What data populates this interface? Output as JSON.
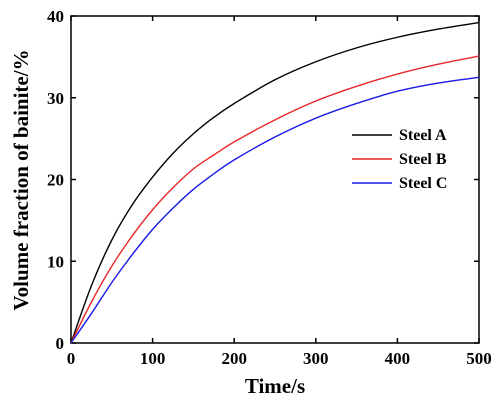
{
  "chart_data": {
    "type": "line",
    "title": "",
    "xlabel": "Time/s",
    "ylabel": "Volume fraction of bainite/%",
    "xlim": [
      0,
      500
    ],
    "ylim": [
      0,
      40
    ],
    "xticks": [
      0,
      100,
      200,
      300,
      400,
      500
    ],
    "yticks": [
      0,
      10,
      20,
      30,
      40
    ],
    "grid": false,
    "legend_position": "right",
    "x": [
      0,
      25,
      50,
      75,
      100,
      125,
      150,
      175,
      200,
      250,
      300,
      350,
      400,
      450,
      500
    ],
    "series": [
      {
        "name": "Steel A",
        "color": "#000000",
        "values": [
          0,
          7.0,
          12.6,
          16.9,
          20.3,
          23.2,
          25.6,
          27.6,
          29.3,
          32.2,
          34.4,
          36.1,
          37.4,
          38.4,
          39.2
        ]
      },
      {
        "name": "Steel B",
        "color": "#e8282a",
        "values": [
          0,
          5.0,
          9.4,
          13.1,
          16.3,
          19.0,
          21.3,
          23.0,
          24.6,
          27.3,
          29.6,
          31.4,
          32.9,
          34.1,
          35.1
        ]
      },
      {
        "name": "Steel C",
        "color": "#1a1ae6",
        "values": [
          0,
          3.6,
          7.4,
          10.8,
          13.9,
          16.5,
          18.8,
          20.7,
          22.4,
          25.2,
          27.5,
          29.3,
          30.8,
          31.8,
          32.5
        ]
      }
    ]
  }
}
